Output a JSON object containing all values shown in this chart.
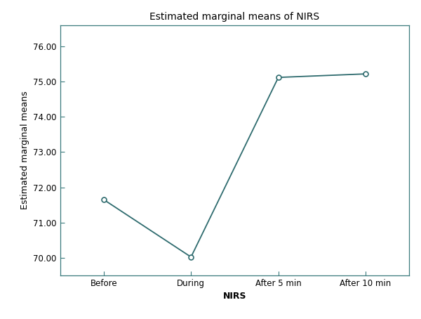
{
  "title": "Estimated marginal means of NIRS",
  "xlabel": "NIRS",
  "ylabel": "Estimated marginal means",
  "x_labels": [
    "Before",
    "During",
    "After 5 min",
    "After 10 min"
  ],
  "y_values": [
    71.65,
    70.02,
    75.12,
    75.22
  ],
  "ylim": [
    69.5,
    76.6
  ],
  "yticks": [
    70.0,
    71.0,
    72.0,
    73.0,
    74.0,
    75.0,
    76.0
  ],
  "line_color": "#2e6b6e",
  "marker_style": "o",
  "marker_facecolor": "white",
  "marker_edgecolor": "#2e6b6e",
  "marker_size": 5,
  "line_width": 1.3,
  "background_color": "#ffffff",
  "plot_bg_color": "#ffffff",
  "spine_color": "#3a7a7d",
  "title_fontsize": 10,
  "label_fontsize": 9,
  "tick_fontsize": 8.5,
  "xlabel_fontweight": "bold",
  "figsize": [
    6.0,
    4.54
  ],
  "dpi": 100
}
